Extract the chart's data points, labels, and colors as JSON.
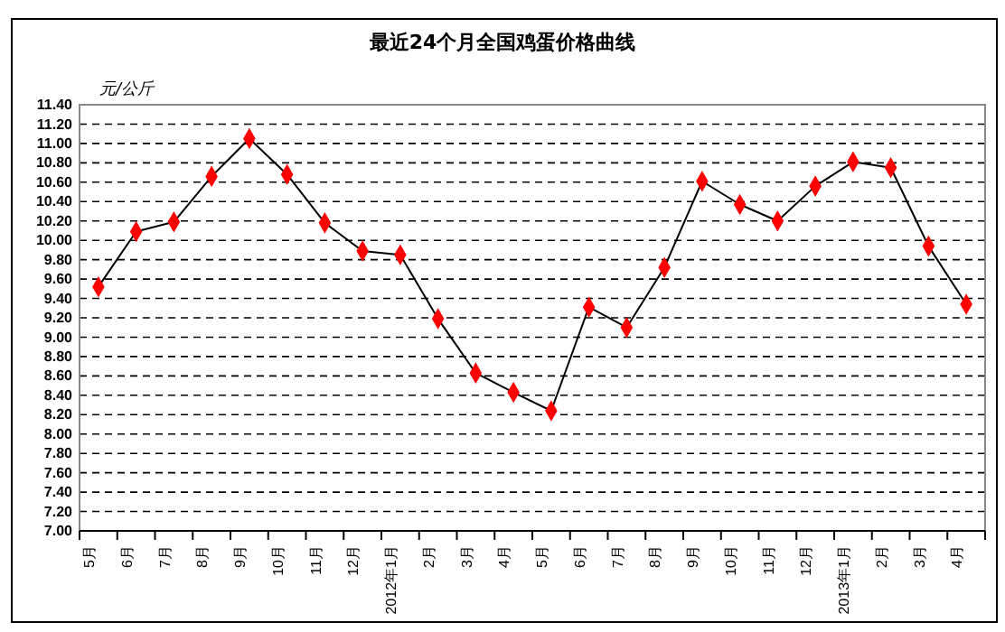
{
  "chart_data": {
    "type": "line",
    "title": "最近24个月全国鸡蛋价格曲线",
    "ylabel": "元/公斤",
    "categories": [
      "5月",
      "6月",
      "7月",
      "8月",
      "9月",
      "10月",
      "11月",
      "12月",
      "2012年1月",
      "2月",
      "3月",
      "4月",
      "5月",
      "6月",
      "7月",
      "8月",
      "9月",
      "10月",
      "11月",
      "12月",
      "2013年1月",
      "2月",
      "3月",
      "4月"
    ],
    "series": [
      {
        "color": "#ff0000",
        "values": [
          9.52,
          10.09,
          10.19,
          10.66,
          11.05,
          10.68,
          10.18,
          9.89,
          9.85,
          9.19,
          8.63,
          8.43,
          8.24,
          9.31,
          9.1,
          9.72,
          10.61,
          10.37,
          10.2,
          10.56,
          10.81,
          10.75,
          9.94,
          9.34
        ]
      }
    ],
    "ylim": [
      7,
      11.4
    ],
    "yticks": [
      {
        "value": 7,
        "label": "7.00"
      },
      {
        "value": 7.2,
        "label": "7.20"
      },
      {
        "value": 7.4,
        "label": "7.40"
      },
      {
        "value": 7.6,
        "label": "7.60"
      },
      {
        "value": 7.8,
        "label": "7.80"
      },
      {
        "value": 8,
        "label": "8.00"
      },
      {
        "value": 8.2,
        "label": "8.20"
      },
      {
        "value": 8.4,
        "label": "8.40"
      },
      {
        "value": 8.6,
        "label": "8.60"
      },
      {
        "value": 8.8,
        "label": "8.80"
      },
      {
        "value": 9,
        "label": "9.00"
      },
      {
        "value": 9.2,
        "label": "9.20"
      },
      {
        "value": 9.4,
        "label": "9.40"
      },
      {
        "value": 9.6,
        "label": "9.60"
      },
      {
        "value": 9.8,
        "label": "9.80"
      },
      {
        "value": 10,
        "label": "10.00"
      },
      {
        "value": 10.2,
        "label": "10.20"
      },
      {
        "value": 10.4,
        "label": "10.40"
      },
      {
        "value": 10.6,
        "label": "10.60"
      },
      {
        "value": 10.8,
        "label": "10.80"
      },
      {
        "value": 11,
        "label": "11.00"
      },
      {
        "value": 11.2,
        "label": "11.20"
      },
      {
        "value": 11.4,
        "label": "11.40"
      }
    ],
    "grid": "y",
    "marker": "diamond",
    "line_style": "solid"
  }
}
